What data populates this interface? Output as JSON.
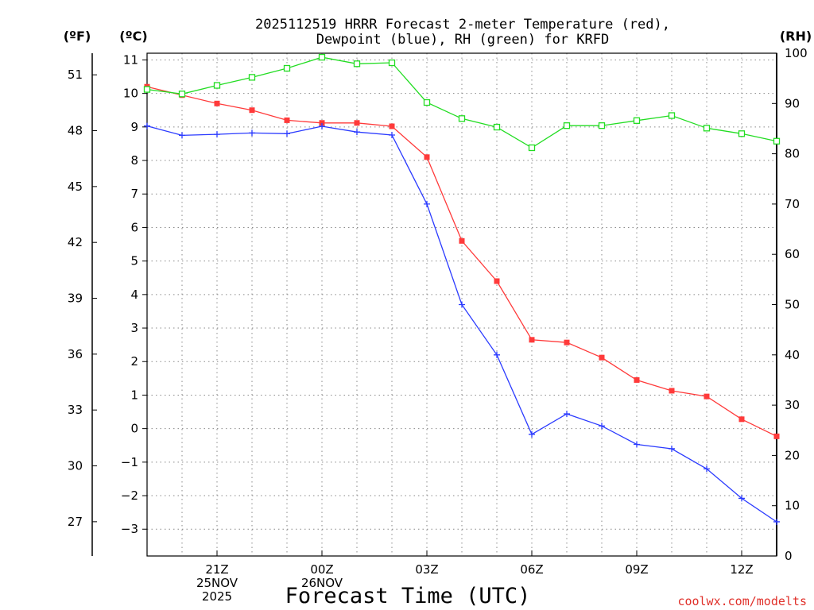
{
  "chart_data": {
    "type": "line",
    "title_lines": [
      "2025112519 HRRR Forecast 2-meter Temperature (red),",
      "Dewpoint (blue), RH (green) for KRFD"
    ],
    "xlabel": "Forecast Time (UTC)",
    "credit": "coolwx.com/modelts",
    "left_axis_f": {
      "label": "(ºF)",
      "ticks": [
        51,
        48,
        45,
        42,
        39,
        36,
        33,
        30,
        27
      ]
    },
    "left_axis_c": {
      "label": "(ºC)",
      "ylim": [
        -3.8,
        11.2
      ],
      "ticks": [
        11,
        10,
        9,
        8,
        7,
        6,
        5,
        4,
        3,
        2,
        1,
        0,
        -1,
        -2,
        -3
      ]
    },
    "right_axis_rh": {
      "label": "(RH)",
      "ylim": [
        0,
        100
      ],
      "ticks": [
        100,
        90,
        80,
        70,
        60,
        50,
        40,
        30,
        20,
        10,
        0
      ]
    },
    "x_hours": [
      19,
      20,
      21,
      22,
      23,
      24,
      25,
      26,
      27,
      28,
      29,
      30,
      31,
      32,
      33,
      34,
      35,
      36,
      37
    ],
    "xlim": [
      19,
      37
    ],
    "x_ticks": [
      {
        "hour": 21,
        "lines": [
          "21Z",
          "25NOV",
          "2025"
        ]
      },
      {
        "hour": 24,
        "lines": [
          "00Z",
          "26NOV"
        ]
      },
      {
        "hour": 27,
        "lines": [
          "03Z"
        ]
      },
      {
        "hour": 30,
        "lines": [
          "06Z"
        ]
      },
      {
        "hour": 33,
        "lines": [
          "09Z"
        ]
      },
      {
        "hour": 36,
        "lines": [
          "12Z"
        ]
      }
    ],
    "series": [
      {
        "name": "Temperature",
        "axis": "c",
        "color": "#ff3a3a",
        "marker": "filled-square",
        "values": [
          10.2,
          9.95,
          9.7,
          9.5,
          9.2,
          9.12,
          9.12,
          9.02,
          8.1,
          5.6,
          4.4,
          2.65,
          2.57,
          2.12,
          1.45,
          1.13,
          0.96,
          0.28,
          -0.23
        ]
      },
      {
        "name": "Dewpoint",
        "axis": "c",
        "color": "#2b3bff",
        "marker": "plus",
        "values": [
          9.03,
          8.75,
          8.78,
          8.82,
          8.8,
          9.02,
          8.85,
          8.76,
          6.7,
          3.7,
          2.2,
          -0.17,
          0.44,
          0.08,
          -0.47,
          -0.6,
          -1.2,
          -2.08,
          -2.78
        ]
      },
      {
        "name": "RH",
        "axis": "rh",
        "color": "#22dd22",
        "marker": "open-square",
        "values": [
          92.8,
          91.9,
          93.6,
          95.2,
          97.0,
          99.2,
          97.9,
          98.1,
          90.2,
          87.0,
          85.3,
          81.2,
          85.6,
          85.6,
          86.6,
          87.6,
          85.1,
          84.0,
          82.5
        ]
      }
    ]
  }
}
